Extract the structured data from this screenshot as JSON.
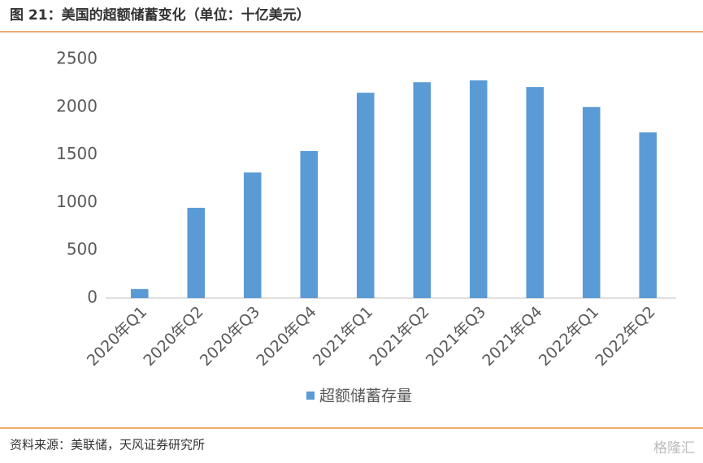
{
  "header": {
    "title": "图 21：美国的超额储蓄变化（单位：十亿美元）"
  },
  "chart_data": {
    "type": "bar",
    "categories": [
      "2020年Q1",
      "2020年Q2",
      "2020年Q3",
      "2020年Q4",
      "2021年Q1",
      "2021年Q2",
      "2021年Q3",
      "2021年Q4",
      "2022年Q1",
      "2022年Q2"
    ],
    "series": [
      {
        "name": "超额储蓄存量",
        "color": "#5b9bd5",
        "values": [
          95,
          945,
          1315,
          1540,
          2150,
          2260,
          2280,
          2210,
          2000,
          1735
        ]
      }
    ],
    "ylim": [
      0,
      2500
    ],
    "yticks": [
      0,
      500,
      1000,
      1500,
      2000,
      2500
    ],
    "grid": false,
    "legend": "bottom"
  },
  "footer": {
    "source": "资料来源：美联储，天风证券研究所",
    "watermark": "格隆汇"
  }
}
